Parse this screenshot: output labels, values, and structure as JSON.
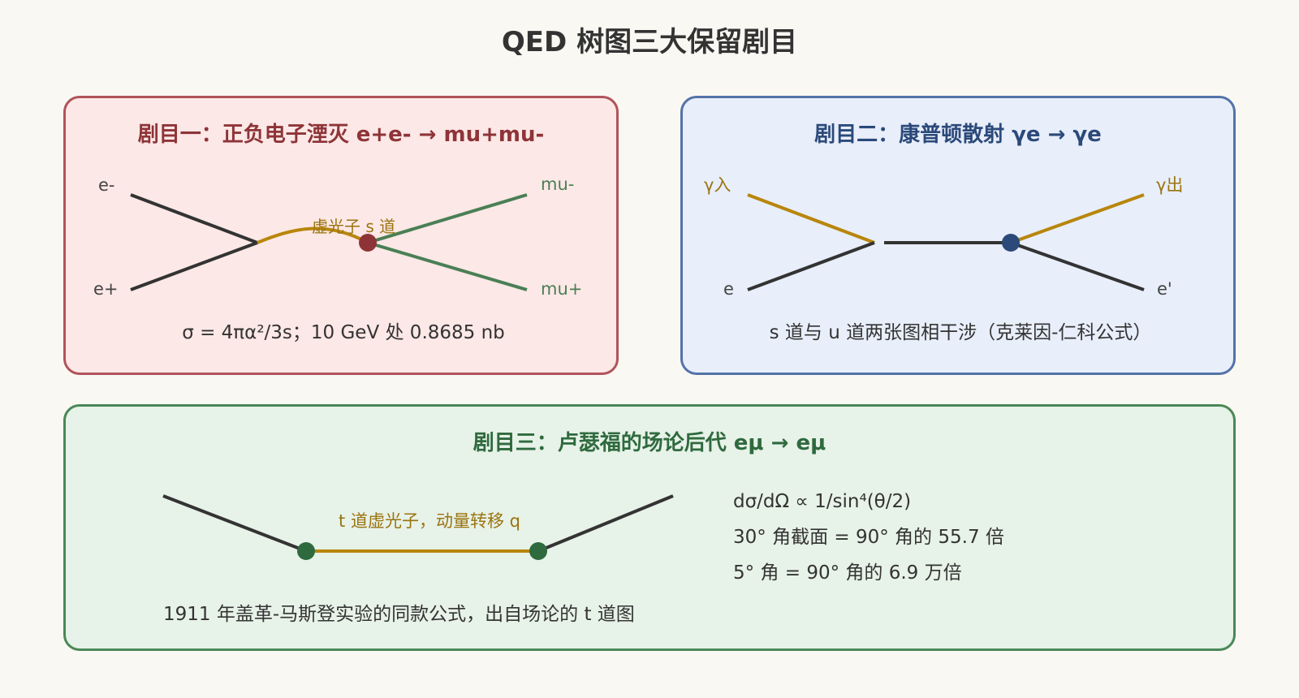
{
  "title": "QED 树图三大保留剧目",
  "panels": [
    {
      "title": "剧目一：正负电子湮灭 e+e- → mu+mu-",
      "labels": {
        "in_top": "e-",
        "in_bottom": "e+",
        "out_top": "mu-",
        "out_bottom": "mu+",
        "propagator": "虚光子 s 道"
      },
      "caption": "σ = 4πα²/3s；10 GeV 处 0.8685 nb"
    },
    {
      "title": "剧目二：康普顿散射 γe → γe",
      "labels": {
        "in_top": "γ入",
        "in_bottom": "e",
        "out_top": "γ出",
        "out_bottom": "e'"
      },
      "caption": "s 道与 u 道两张图相干涉（克莱因-仁科公式）"
    },
    {
      "title": "剧目三：卢瑟福的场论后代 eμ → eμ",
      "labels": {
        "propagator": "t 道虚光子，动量转移 q"
      },
      "formulas": [
        "dσ/dΩ ∝ 1/sin⁴(θ/2)",
        "30° 角截面 = 90° 角的 55.7 倍",
        "5° 角 = 90° 角的 6.9 万倍"
      ],
      "caption": "1911 年盖革-马斯登实验的同款公式，出自场论的 t 道图"
    }
  ],
  "colors": {
    "fermion": "#333333",
    "photon": "#b8860b",
    "muon": "#4a7f55",
    "vertex_red": "#8e3438",
    "vertex_blue": "#2b4a7a",
    "vertex_green": "#2f6a3e"
  }
}
